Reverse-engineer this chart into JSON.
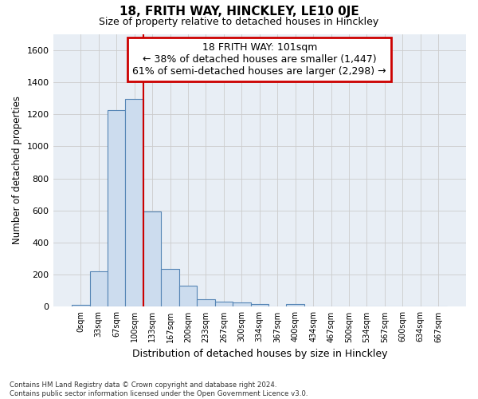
{
  "title": "18, FRITH WAY, HINCKLEY, LE10 0JE",
  "subtitle": "Size of property relative to detached houses in Hinckley",
  "xlabel": "Distribution of detached houses by size in Hinckley",
  "ylabel": "Number of detached properties",
  "footer_line1": "Contains HM Land Registry data © Crown copyright and database right 2024.",
  "footer_line2": "Contains public sector information licensed under the Open Government Licence v3.0.",
  "bar_labels": [
    "0sqm",
    "33sqm",
    "67sqm",
    "100sqm",
    "133sqm",
    "167sqm",
    "200sqm",
    "233sqm",
    "267sqm",
    "300sqm",
    "334sqm",
    "367sqm",
    "400sqm",
    "434sqm",
    "467sqm",
    "500sqm",
    "534sqm",
    "567sqm",
    "600sqm",
    "634sqm",
    "667sqm"
  ],
  "bar_values": [
    10,
    220,
    1225,
    1295,
    595,
    235,
    130,
    45,
    30,
    25,
    15,
    0,
    15,
    0,
    0,
    0,
    0,
    0,
    0,
    0,
    0
  ],
  "bar_color": "#ccdcee",
  "bar_edge_color": "#5585b5",
  "ylim": [
    0,
    1700
  ],
  "yticks": [
    0,
    200,
    400,
    600,
    800,
    1000,
    1200,
    1400,
    1600
  ],
  "property_line_bin": 3,
  "annotation_text_line1": "18 FRITH WAY: 101sqm",
  "annotation_text_line2": "← 38% of detached houses are smaller (1,447)",
  "annotation_text_line3": "61% of semi-detached houses are larger (2,298) →",
  "annotation_box_color": "#ffffff",
  "annotation_box_edge": "#cc0000",
  "property_line_color": "#cc0000",
  "grid_color": "#cccccc",
  "background_color": "#e8eef5",
  "title_fontsize": 11,
  "subtitle_fontsize": 9
}
